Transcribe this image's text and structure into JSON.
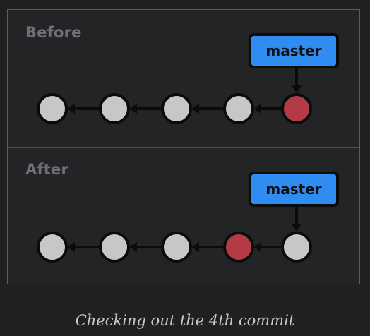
{
  "panels": [
    {
      "title": "Before",
      "branch_label": "master",
      "commits": [
        "commit-1",
        "commit-2",
        "commit-3",
        "commit-4",
        "commit-5"
      ],
      "checked_out_index": 4,
      "branch_index": 4
    },
    {
      "title": "After",
      "branch_label": "master",
      "commits": [
        "commit-1",
        "commit-2",
        "commit-3",
        "commit-4",
        "commit-5"
      ],
      "checked_out_index": 3,
      "branch_index": 4
    }
  ],
  "caption": "Checking out the 4th commit",
  "colors": {
    "background": "#1f2022",
    "panel": "#232426",
    "commit_fill": "#c7c7c7",
    "checked_out_fill": "#b43a46",
    "branch_fill": "#2f8cf0",
    "outline": "#0b0b0c",
    "title": "#6e7073",
    "caption": "#c9c9c9"
  }
}
